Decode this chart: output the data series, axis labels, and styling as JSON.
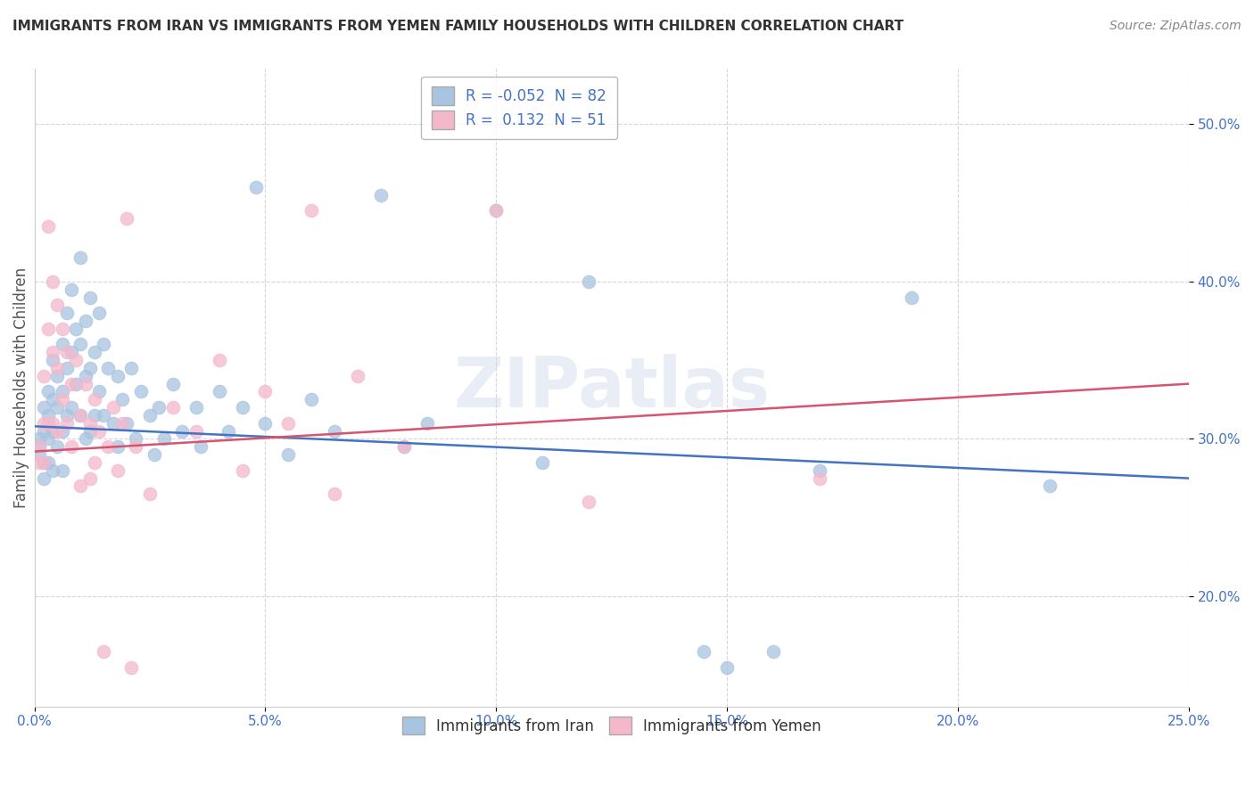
{
  "title": "IMMIGRANTS FROM IRAN VS IMMIGRANTS FROM YEMEN FAMILY HOUSEHOLDS WITH CHILDREN CORRELATION CHART",
  "source": "Source: ZipAtlas.com",
  "ylabel": "Family Households with Children",
  "xlim": [
    0.0,
    0.25
  ],
  "ylim": [
    0.13,
    0.535
  ],
  "xticks": [
    0.0,
    0.05,
    0.1,
    0.15,
    0.2,
    0.25
  ],
  "yticks": [
    0.2,
    0.3,
    0.4,
    0.5
  ],
  "iran_color": "#a8c4e0",
  "yemen_color": "#f4b8cb",
  "iran_line_color": "#4472c4",
  "yemen_line_color": "#d9536f",
  "iran_R": -0.052,
  "iran_N": 82,
  "yemen_R": 0.132,
  "yemen_N": 51,
  "watermark": "ZIPatlas",
  "iran_trendline": [
    0.0,
    0.25,
    0.308,
    0.275
  ],
  "yemen_trendline": [
    0.0,
    0.25,
    0.292,
    0.335
  ],
  "iran_scatter": [
    [
      0.001,
      0.3
    ],
    [
      0.001,
      0.295
    ],
    [
      0.001,
      0.29
    ],
    [
      0.002,
      0.32
    ],
    [
      0.002,
      0.305
    ],
    [
      0.002,
      0.285
    ],
    [
      0.002,
      0.275
    ],
    [
      0.003,
      0.33
    ],
    [
      0.003,
      0.315
    ],
    [
      0.003,
      0.3
    ],
    [
      0.003,
      0.285
    ],
    [
      0.004,
      0.35
    ],
    [
      0.004,
      0.325
    ],
    [
      0.004,
      0.305
    ],
    [
      0.004,
      0.28
    ],
    [
      0.005,
      0.34
    ],
    [
      0.005,
      0.32
    ],
    [
      0.005,
      0.295
    ],
    [
      0.006,
      0.36
    ],
    [
      0.006,
      0.33
    ],
    [
      0.006,
      0.305
    ],
    [
      0.006,
      0.28
    ],
    [
      0.007,
      0.38
    ],
    [
      0.007,
      0.345
    ],
    [
      0.007,
      0.315
    ],
    [
      0.008,
      0.395
    ],
    [
      0.008,
      0.355
    ],
    [
      0.008,
      0.32
    ],
    [
      0.009,
      0.37
    ],
    [
      0.009,
      0.335
    ],
    [
      0.01,
      0.415
    ],
    [
      0.01,
      0.36
    ],
    [
      0.01,
      0.315
    ],
    [
      0.011,
      0.375
    ],
    [
      0.011,
      0.34
    ],
    [
      0.011,
      0.3
    ],
    [
      0.012,
      0.39
    ],
    [
      0.012,
      0.345
    ],
    [
      0.012,
      0.305
    ],
    [
      0.013,
      0.355
    ],
    [
      0.013,
      0.315
    ],
    [
      0.014,
      0.38
    ],
    [
      0.014,
      0.33
    ],
    [
      0.015,
      0.36
    ],
    [
      0.015,
      0.315
    ],
    [
      0.016,
      0.345
    ],
    [
      0.017,
      0.31
    ],
    [
      0.018,
      0.34
    ],
    [
      0.018,
      0.295
    ],
    [
      0.019,
      0.325
    ],
    [
      0.02,
      0.31
    ],
    [
      0.021,
      0.345
    ],
    [
      0.022,
      0.3
    ],
    [
      0.023,
      0.33
    ],
    [
      0.025,
      0.315
    ],
    [
      0.026,
      0.29
    ],
    [
      0.027,
      0.32
    ],
    [
      0.028,
      0.3
    ],
    [
      0.03,
      0.335
    ],
    [
      0.032,
      0.305
    ],
    [
      0.035,
      0.32
    ],
    [
      0.036,
      0.295
    ],
    [
      0.04,
      0.33
    ],
    [
      0.042,
      0.305
    ],
    [
      0.045,
      0.32
    ],
    [
      0.048,
      0.46
    ],
    [
      0.05,
      0.31
    ],
    [
      0.055,
      0.29
    ],
    [
      0.06,
      0.325
    ],
    [
      0.065,
      0.305
    ],
    [
      0.075,
      0.455
    ],
    [
      0.08,
      0.295
    ],
    [
      0.085,
      0.31
    ],
    [
      0.1,
      0.445
    ],
    [
      0.11,
      0.285
    ],
    [
      0.12,
      0.4
    ],
    [
      0.145,
      0.165
    ],
    [
      0.15,
      0.155
    ],
    [
      0.16,
      0.165
    ],
    [
      0.17,
      0.28
    ],
    [
      0.19,
      0.39
    ],
    [
      0.22,
      0.27
    ]
  ],
  "yemen_scatter": [
    [
      0.001,
      0.295
    ],
    [
      0.001,
      0.285
    ],
    [
      0.002,
      0.34
    ],
    [
      0.002,
      0.31
    ],
    [
      0.002,
      0.285
    ],
    [
      0.003,
      0.435
    ],
    [
      0.003,
      0.37
    ],
    [
      0.003,
      0.31
    ],
    [
      0.004,
      0.4
    ],
    [
      0.004,
      0.355
    ],
    [
      0.004,
      0.31
    ],
    [
      0.005,
      0.385
    ],
    [
      0.005,
      0.345
    ],
    [
      0.005,
      0.305
    ],
    [
      0.006,
      0.37
    ],
    [
      0.006,
      0.325
    ],
    [
      0.007,
      0.355
    ],
    [
      0.007,
      0.31
    ],
    [
      0.008,
      0.335
    ],
    [
      0.008,
      0.295
    ],
    [
      0.009,
      0.35
    ],
    [
      0.01,
      0.315
    ],
    [
      0.01,
      0.27
    ],
    [
      0.011,
      0.335
    ],
    [
      0.012,
      0.31
    ],
    [
      0.012,
      0.275
    ],
    [
      0.013,
      0.325
    ],
    [
      0.013,
      0.285
    ],
    [
      0.014,
      0.305
    ],
    [
      0.015,
      0.165
    ],
    [
      0.016,
      0.295
    ],
    [
      0.017,
      0.32
    ],
    [
      0.018,
      0.28
    ],
    [
      0.019,
      0.31
    ],
    [
      0.02,
      0.44
    ],
    [
      0.021,
      0.155
    ],
    [
      0.022,
      0.295
    ],
    [
      0.025,
      0.265
    ],
    [
      0.03,
      0.32
    ],
    [
      0.035,
      0.305
    ],
    [
      0.04,
      0.35
    ],
    [
      0.045,
      0.28
    ],
    [
      0.05,
      0.33
    ],
    [
      0.055,
      0.31
    ],
    [
      0.06,
      0.445
    ],
    [
      0.065,
      0.265
    ],
    [
      0.07,
      0.34
    ],
    [
      0.08,
      0.295
    ],
    [
      0.1,
      0.445
    ],
    [
      0.12,
      0.26
    ],
    [
      0.17,
      0.275
    ]
  ]
}
